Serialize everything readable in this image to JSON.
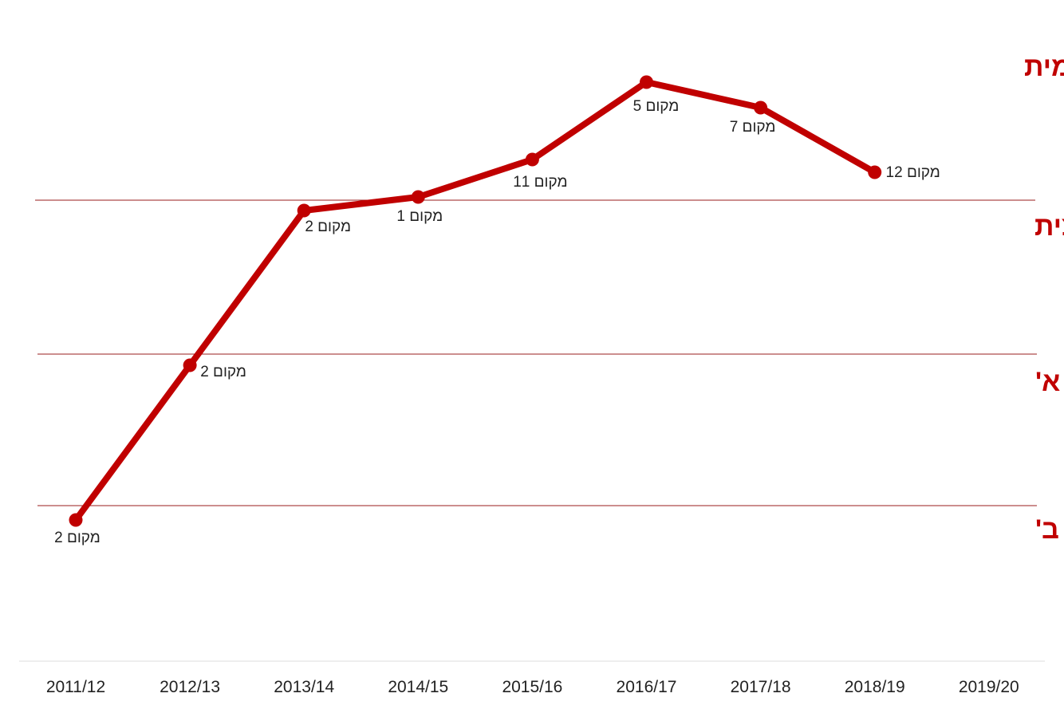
{
  "chart_data": {
    "type": "line",
    "x": [
      "2011/12",
      "2012/13",
      "2013/14",
      "2014/15",
      "2015/16",
      "2016/17",
      "2017/18",
      "2018/19",
      "2019/20"
    ],
    "league_labels": [
      "ליגה לאומית",
      "ליגה ארצית",
      "ליגה א'",
      "ליגה ב'"
    ],
    "points": [
      {
        "season": "2011/12",
        "league": "ליגה ב'",
        "position": 2,
        "label": "מקום 2"
      },
      {
        "season": "2012/13",
        "league": "ליגה א'",
        "position": 2,
        "label": "מקום 2"
      },
      {
        "season": "2013/14",
        "league": "ליגה ארצית",
        "position": 2,
        "label": "מקום 2"
      },
      {
        "season": "2014/15",
        "league": "ליגה ארצית",
        "position": 1,
        "label": "מקום 1"
      },
      {
        "season": "2015/16",
        "league": "ליגה לאומית",
        "position": 11,
        "label": "מקום 11"
      },
      {
        "season": "2016/17",
        "league": "ליגה לאומית",
        "position": 5,
        "label": "מקום 5"
      },
      {
        "season": "2017/18",
        "league": "ליגה לאומית",
        "position": 7,
        "label": "מקום 7"
      },
      {
        "season": "2018/19",
        "league": "ליגה לאומית",
        "position": 12,
        "label": "מקום 12"
      }
    ],
    "grid": false,
    "legend": "none"
  },
  "colors": {
    "line": "#c00000",
    "league_text": "#c00000",
    "divider": "#9a1e1e",
    "axis": "#dddddd",
    "text": "#222222"
  }
}
